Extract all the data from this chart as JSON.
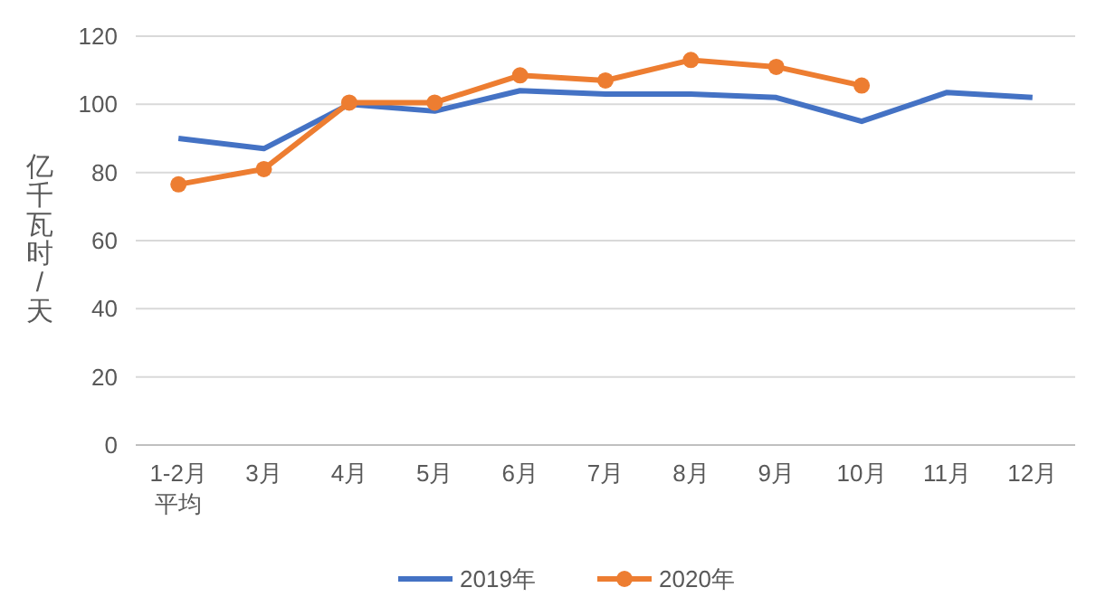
{
  "chart_data": {
    "type": "line",
    "ylabel": "亿千瓦时/天",
    "categories": [
      "1-2月平均",
      "3月",
      "4月",
      "5月",
      "6月",
      "7月",
      "8月",
      "9月",
      "10月",
      "11月",
      "12月"
    ],
    "series": [
      {
        "name": "2019年",
        "color": "#4472c4",
        "marker": "none",
        "values": [
          90,
          87,
          100,
          98,
          104,
          103,
          103,
          102,
          95,
          103.5,
          102
        ]
      },
      {
        "name": "2020年",
        "color": "#ed7d31",
        "marker": "circle",
        "values": [
          76.5,
          81,
          100.5,
          100.5,
          108.5,
          107,
          113,
          111,
          105.5,
          null,
          null
        ]
      }
    ],
    "ylim": [
      0,
      120
    ],
    "yticks": [
      0,
      20,
      40,
      60,
      80,
      100,
      120
    ],
    "grid": "y",
    "legend": "bottom",
    "line_style": "solid"
  }
}
